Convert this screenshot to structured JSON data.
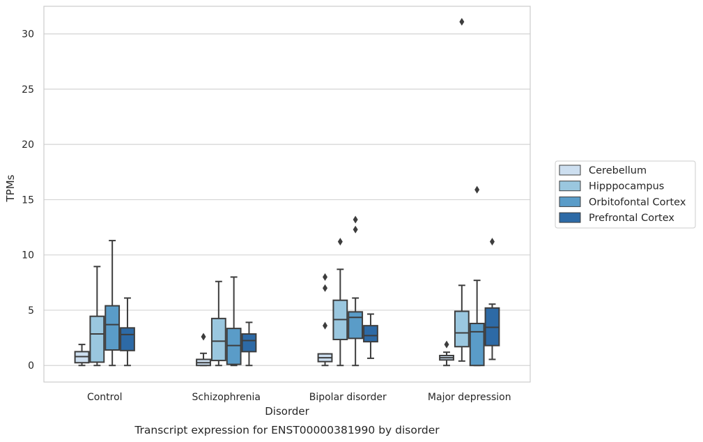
{
  "chart_data": {
    "type": "box",
    "caption": "Transcript expression for ENST00000381990 by disorder",
    "xlabel": "Disorder",
    "ylabel": "TPMs",
    "ylim": [
      -1.5,
      32.5
    ],
    "yticks": [
      0,
      5,
      10,
      15,
      20,
      25,
      30
    ],
    "grid": true,
    "legend_position": "right",
    "categories": [
      "Control",
      "Schizophrenia",
      "Bipolar disorder",
      "Major depression"
    ],
    "series": [
      {
        "name": "Cerebellum",
        "color": "#cddff0",
        "boxes": [
          {
            "whislo": 0.0,
            "q1": 0.25,
            "med": 0.8,
            "q3": 1.25,
            "whishi": 1.9,
            "fliers": []
          },
          {
            "whislo": 0.0,
            "q1": 0.0,
            "med": 0.25,
            "q3": 0.55,
            "whishi": 1.1,
            "fliers": [
              2.6
            ]
          },
          {
            "whislo": 0.0,
            "q1": 0.35,
            "med": 0.7,
            "q3": 1.05,
            "whishi": 1.05,
            "fliers": [
              3.6,
              7.0,
              8.0
            ]
          },
          {
            "whislo": 0.0,
            "q1": 0.5,
            "med": 0.7,
            "q3": 0.9,
            "whishi": 1.2,
            "fliers": [
              1.9
            ]
          }
        ]
      },
      {
        "name": "Hipppocampus",
        "color": "#9ac7df",
        "boxes": [
          {
            "whislo": 0.0,
            "q1": 0.3,
            "med": 2.85,
            "q3": 4.45,
            "whishi": 8.95,
            "fliers": []
          },
          {
            "whislo": 0.0,
            "q1": 0.45,
            "med": 2.2,
            "q3": 4.25,
            "whishi": 7.6,
            "fliers": []
          },
          {
            "whislo": 0.0,
            "q1": 2.35,
            "med": 4.15,
            "q3": 5.9,
            "whishi": 8.7,
            "fliers": [
              11.2
            ]
          },
          {
            "whislo": 0.4,
            "q1": 1.7,
            "med": 2.95,
            "q3": 4.9,
            "whishi": 7.25,
            "fliers": [
              31.1
            ]
          }
        ]
      },
      {
        "name": "Orbitofontal Cortex",
        "color": "#5a9cc8",
        "boxes": [
          {
            "whislo": 0.0,
            "q1": 1.4,
            "med": 3.7,
            "q3": 5.4,
            "whishi": 11.3,
            "fliers": []
          },
          {
            "whislo": 0.0,
            "q1": 0.1,
            "med": 1.8,
            "q3": 3.35,
            "whishi": 8.0,
            "fliers": []
          },
          {
            "whislo": 0.0,
            "q1": 2.45,
            "med": 4.35,
            "q3": 4.85,
            "whishi": 6.1,
            "fliers": [
              12.3,
              13.2
            ]
          },
          {
            "whislo": 0.0,
            "q1": 0.0,
            "med": 3.05,
            "q3": 3.8,
            "whishi": 7.7,
            "fliers": [
              15.9
            ]
          }
        ]
      },
      {
        "name": "Prefrontal Cortex",
        "color": "#2d6aa6",
        "boxes": [
          {
            "whislo": 0.0,
            "q1": 1.35,
            "med": 2.8,
            "q3": 3.4,
            "whishi": 6.1,
            "fliers": []
          },
          {
            "whislo": 0.0,
            "q1": 1.25,
            "med": 2.25,
            "q3": 2.85,
            "whishi": 3.9,
            "fliers": []
          },
          {
            "whislo": 0.65,
            "q1": 2.15,
            "med": 2.7,
            "q3": 3.6,
            "whishi": 4.65,
            "fliers": []
          },
          {
            "whislo": 0.55,
            "q1": 1.8,
            "med": 3.45,
            "q3": 5.2,
            "whishi": 5.55,
            "fliers": [
              11.2
            ]
          }
        ]
      }
    ]
  }
}
